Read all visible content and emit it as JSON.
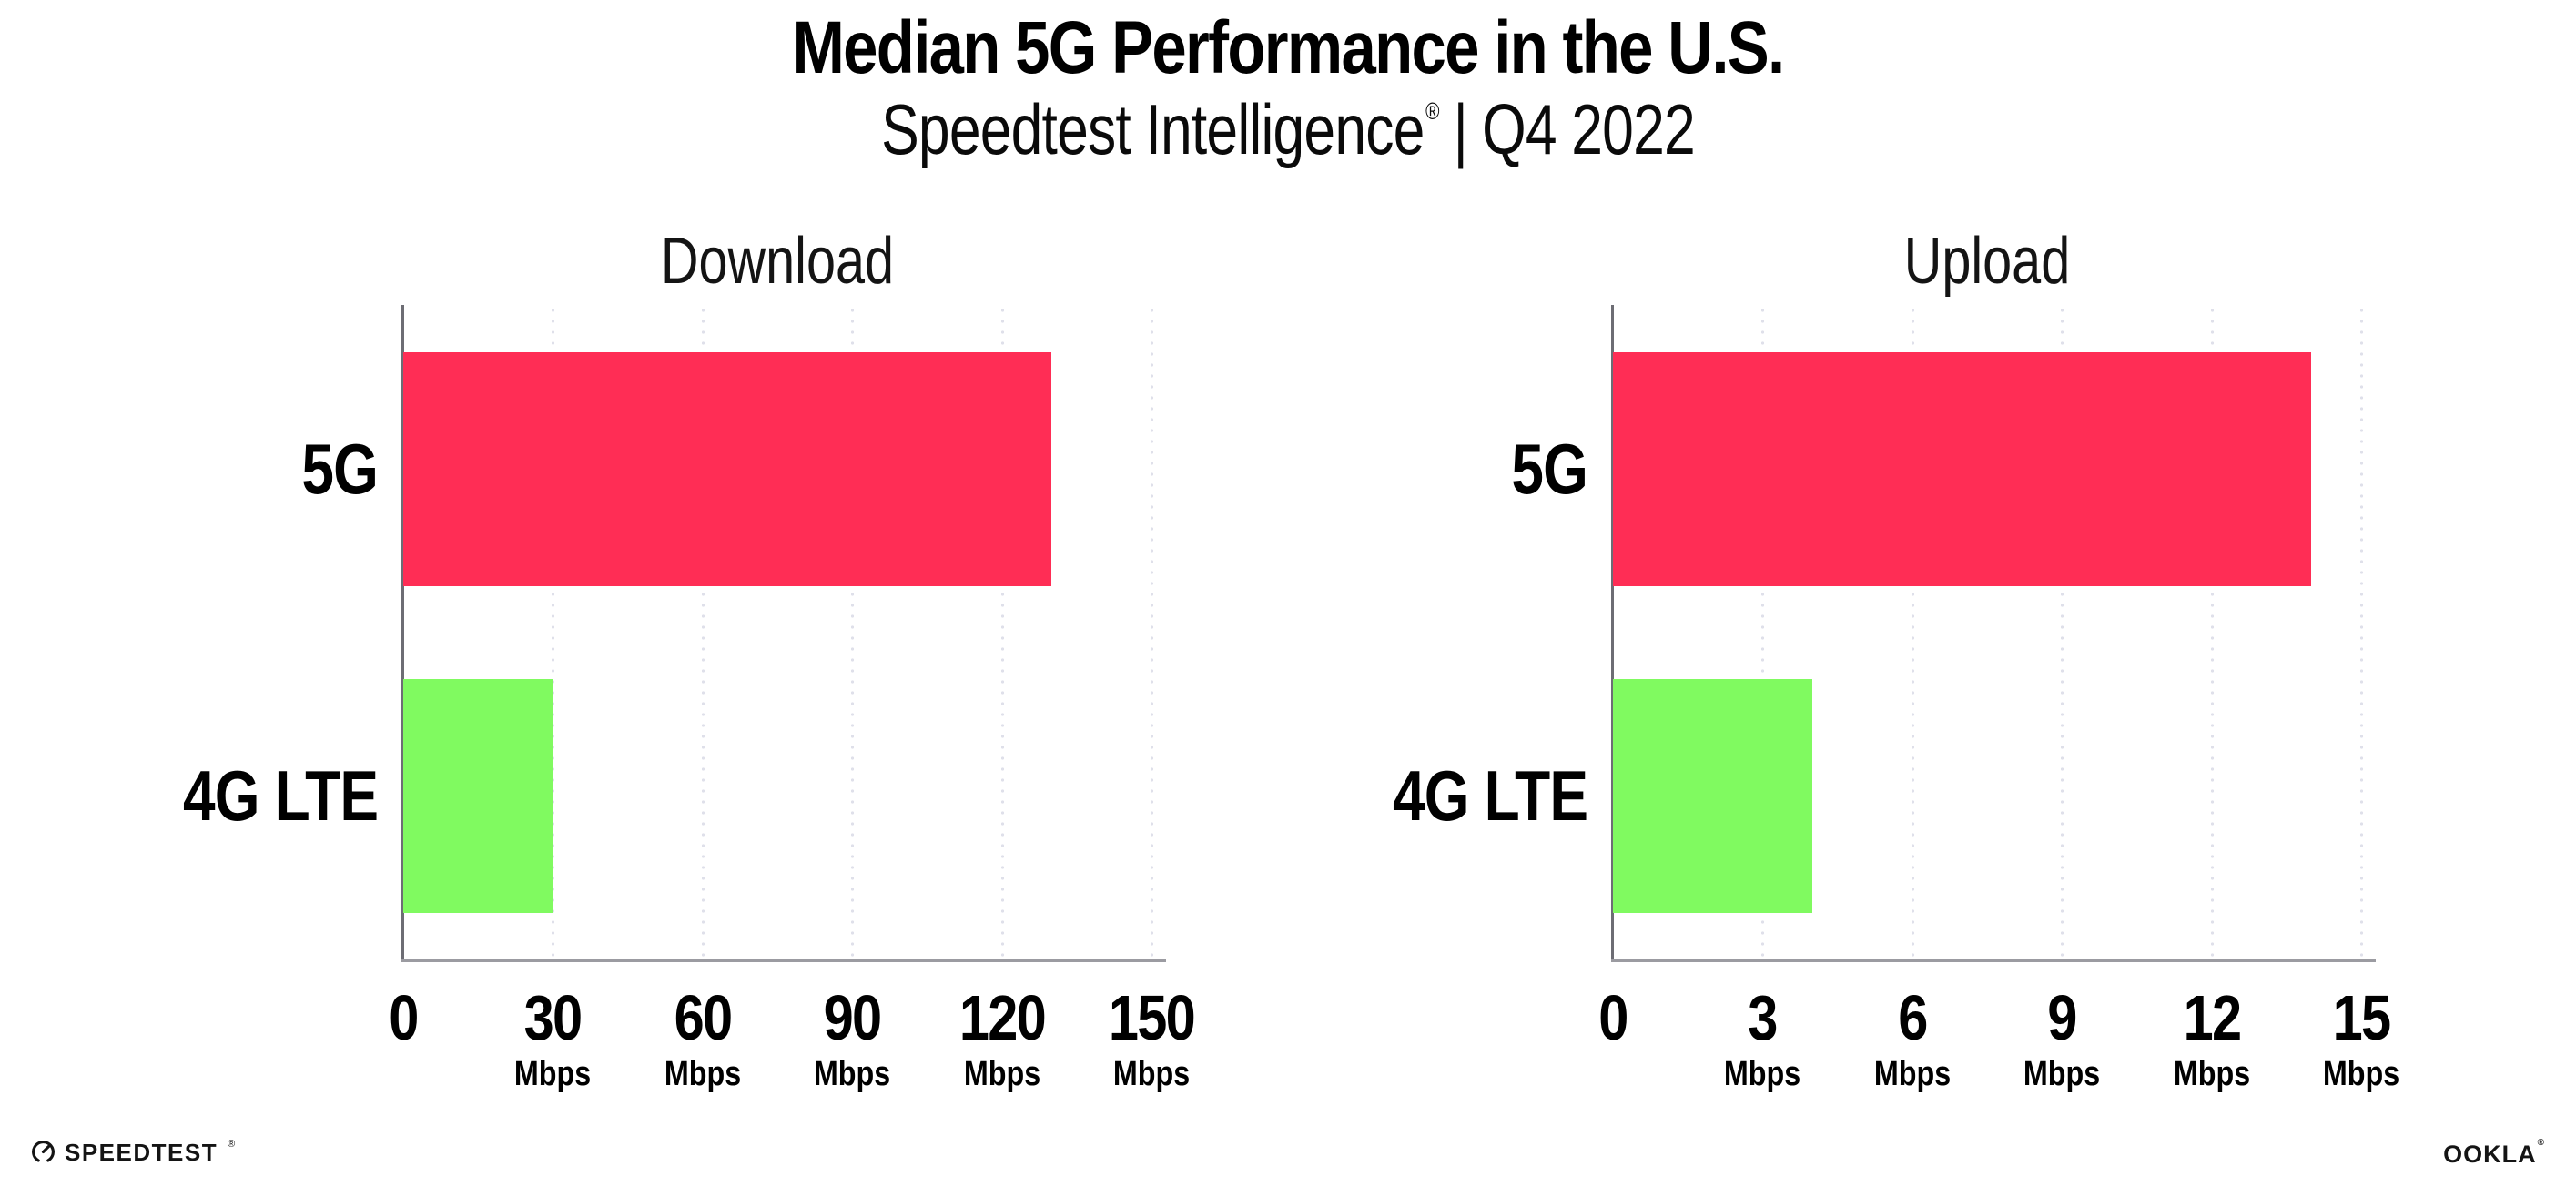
{
  "header": {
    "title": "Median 5G Performance in the U.S.",
    "subtitle": {
      "brand": "Speedtest Intelligence",
      "registered_mark": "®",
      "separator": "|",
      "period": "Q4 2022"
    }
  },
  "chart_data": [
    {
      "type": "bar",
      "orientation": "horizontal",
      "title": "Download",
      "categories": [
        "5G",
        "4G LTE"
      ],
      "values": [
        130,
        30
      ],
      "unit": "Mbps",
      "xlim": [
        0,
        150
      ],
      "tick_values": [
        0,
        30,
        60,
        90,
        120,
        150
      ],
      "ticks": [
        {
          "label": "0",
          "unit": ""
        },
        {
          "label": "30",
          "unit": "Mbps"
        },
        {
          "label": "60",
          "unit": "Mbps"
        },
        {
          "label": "90",
          "unit": "Mbps"
        },
        {
          "label": "120",
          "unit": "Mbps"
        },
        {
          "label": "150",
          "unit": "Mbps"
        }
      ],
      "bar_colors": [
        "#FF2D55",
        "#80FA60"
      ],
      "grid": "vertical-dotted",
      "legend_position": "none"
    },
    {
      "type": "bar",
      "orientation": "horizontal",
      "title": "Upload",
      "categories": [
        "5G",
        "4G LTE"
      ],
      "values": [
        14,
        4
      ],
      "unit": "Mbps",
      "xlim": [
        0,
        15
      ],
      "tick_values": [
        0,
        3,
        6,
        9,
        12,
        15
      ],
      "ticks": [
        {
          "label": "0",
          "unit": ""
        },
        {
          "label": "3",
          "unit": "Mbps"
        },
        {
          "label": "6",
          "unit": "Mbps"
        },
        {
          "label": "9",
          "unit": "Mbps"
        },
        {
          "label": "12",
          "unit": "Mbps"
        },
        {
          "label": "15",
          "unit": "Mbps"
        }
      ],
      "bar_colors": [
        "#FF2D55",
        "#80FA60"
      ],
      "grid": "vertical-dotted",
      "legend_position": "none"
    }
  ],
  "footer": {
    "speedtest_logo": "SPEEDTEST",
    "speedtest_mark": "®",
    "ookla_logo": "OOKLA",
    "ookla_mark": "®"
  },
  "colors": {
    "bar_5g": "#FF2D55",
    "bar_4g_lte": "#80FA60",
    "axis": "#9B9BA1",
    "gridline_dots": "#DFE0EA",
    "text": "#000000"
  }
}
